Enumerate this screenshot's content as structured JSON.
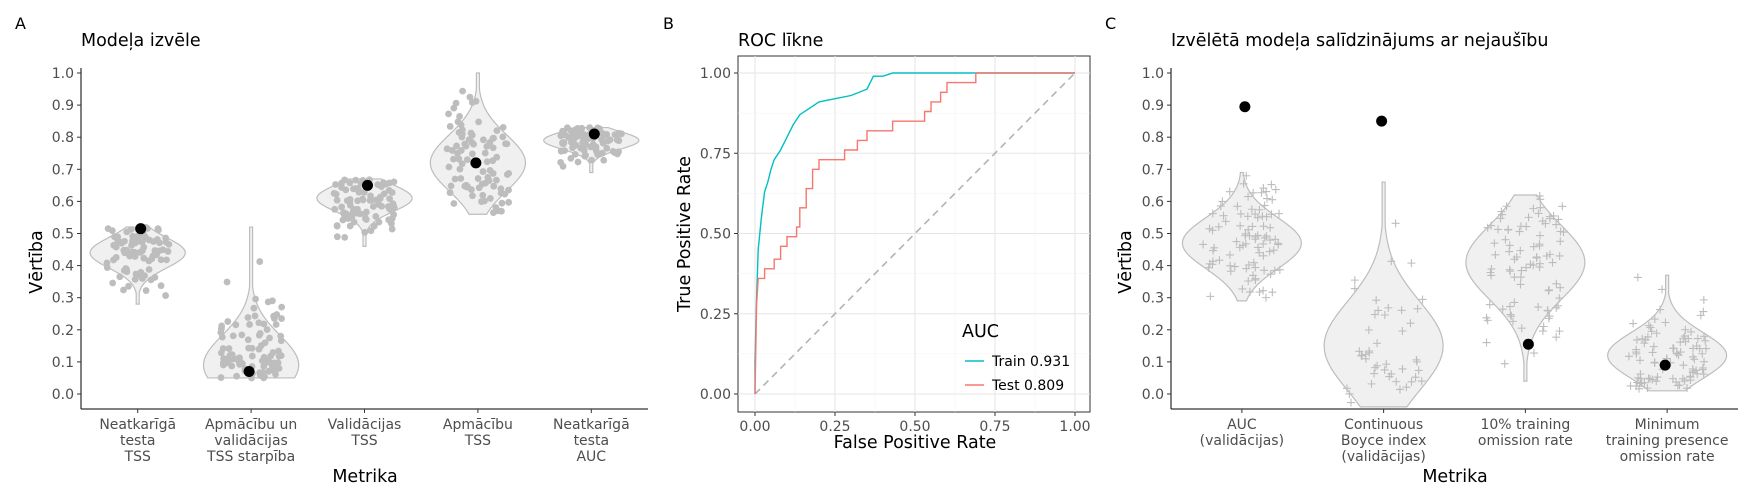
{
  "chart_data": [
    {
      "panel_letter": "A",
      "type": "violin",
      "title": "Modeļa izvēle",
      "xlabel": "Metrika",
      "ylabel": "Vērtība",
      "ylim": [
        0,
        1
      ],
      "yticks": [
        "0.0",
        "0.1",
        "0.2",
        "0.3",
        "0.4",
        "0.5",
        "0.6",
        "0.7",
        "0.8",
        "0.9",
        "1.0"
      ],
      "grid": false,
      "categories": [
        {
          "label_lines": [
            "Neatkarīgā",
            "testa",
            "TSS"
          ],
          "min": 0.28,
          "max": 0.52,
          "center": 0.44,
          "n_points": 90,
          "selected": 0.515
        },
        {
          "label_lines": [
            "Apmācību un",
            "validācijas",
            "TSS starpība"
          ],
          "min": 0.05,
          "max": 0.52,
          "center": 0.09,
          "n_points": 90,
          "selected": 0.07
        },
        {
          "label_lines": [
            "Validācijas",
            "TSS"
          ],
          "min": 0.46,
          "max": 0.67,
          "center": 0.61,
          "n_points": 90,
          "selected": 0.65
        },
        {
          "label_lines": [
            "Apmācību",
            "TSS"
          ],
          "min": 0.56,
          "max": 1.0,
          "center": 0.72,
          "n_points": 90,
          "selected": 0.72
        },
        {
          "label_lines": [
            "Neatkarīgā",
            "testa",
            "AUC"
          ],
          "min": 0.69,
          "max": 0.83,
          "center": 0.79,
          "n_points": 90,
          "selected": 0.81
        }
      ]
    },
    {
      "panel_letter": "B",
      "type": "line",
      "title": "ROC līkne",
      "xlabel": "False Positive Rate",
      "ylabel": "True Positive Rate",
      "xlim": [
        0,
        1
      ],
      "ylim": [
        0,
        1
      ],
      "xticks": [
        "0.00",
        "0.25",
        "0.50",
        "0.75",
        "1.00"
      ],
      "yticks": [
        "0.00",
        "0.25",
        "0.50",
        "0.75",
        "1.00"
      ],
      "grid": true,
      "legend_title": "AUC",
      "legend_position": "bottom-right",
      "series": [
        {
          "name": "Train 0.931",
          "color": "#00BFC4",
          "points": [
            [
              0,
              0
            ],
            [
              0,
              0.1
            ],
            [
              0.005,
              0.3
            ],
            [
              0.01,
              0.45
            ],
            [
              0.02,
              0.55
            ],
            [
              0.03,
              0.63
            ],
            [
              0.04,
              0.66
            ],
            [
              0.05,
              0.7
            ],
            [
              0.06,
              0.73
            ],
            [
              0.08,
              0.76
            ],
            [
              0.1,
              0.8
            ],
            [
              0.12,
              0.84
            ],
            [
              0.14,
              0.87
            ],
            [
              0.17,
              0.89
            ],
            [
              0.2,
              0.91
            ],
            [
              0.25,
              0.92
            ],
            [
              0.3,
              0.93
            ],
            [
              0.35,
              0.95
            ],
            [
              0.37,
              0.99
            ],
            [
              0.4,
              0.99
            ],
            [
              0.43,
              1.0
            ],
            [
              1.0,
              1.0
            ]
          ]
        },
        {
          "name": "Test 0.809",
          "color": "#F8766D",
          "points": [
            [
              0,
              0
            ],
            [
              0.005,
              0.28
            ],
            [
              0.01,
              0.36
            ],
            [
              0.03,
              0.36
            ],
            [
              0.03,
              0.39
            ],
            [
              0.06,
              0.39
            ],
            [
              0.06,
              0.42
            ],
            [
              0.08,
              0.42
            ],
            [
              0.08,
              0.46
            ],
            [
              0.1,
              0.46
            ],
            [
              0.1,
              0.49
            ],
            [
              0.13,
              0.49
            ],
            [
              0.13,
              0.52
            ],
            [
              0.14,
              0.52
            ],
            [
              0.14,
              0.58
            ],
            [
              0.16,
              0.58
            ],
            [
              0.16,
              0.64
            ],
            [
              0.18,
              0.64
            ],
            [
              0.18,
              0.7
            ],
            [
              0.2,
              0.7
            ],
            [
              0.2,
              0.73
            ],
            [
              0.28,
              0.73
            ],
            [
              0.28,
              0.76
            ],
            [
              0.32,
              0.76
            ],
            [
              0.32,
              0.79
            ],
            [
              0.35,
              0.79
            ],
            [
              0.35,
              0.82
            ],
            [
              0.43,
              0.82
            ],
            [
              0.43,
              0.85
            ],
            [
              0.53,
              0.85
            ],
            [
              0.53,
              0.88
            ],
            [
              0.55,
              0.88
            ],
            [
              0.55,
              0.91
            ],
            [
              0.58,
              0.91
            ],
            [
              0.58,
              0.94
            ],
            [
              0.6,
              0.94
            ],
            [
              0.6,
              0.97
            ],
            [
              0.69,
              0.97
            ],
            [
              0.69,
              1.0
            ],
            [
              1.0,
              1.0
            ]
          ]
        }
      ],
      "reference_line": {
        "from": [
          0,
          0
        ],
        "to": [
          1,
          1
        ],
        "style": "dashed",
        "color": "#b3b3b3"
      }
    },
    {
      "panel_letter": "C",
      "type": "violin",
      "title": "Izvēlētā modeļa salīdzinājums ar nejaušību",
      "xlabel": "Metrika",
      "ylabel": "Vērtība",
      "ylim": [
        0,
        1
      ],
      "yticks": [
        "0.0",
        "0.1",
        "0.2",
        "0.3",
        "0.4",
        "0.5",
        "0.6",
        "0.7",
        "0.8",
        "0.9",
        "1.0"
      ],
      "grid": false,
      "categories": [
        {
          "label_lines": [
            "AUC",
            "(validācijas)"
          ],
          "min": 0.29,
          "max": 0.69,
          "center": 0.47,
          "n_points": 90,
          "selected": 0.895
        },
        {
          "label_lines": [
            "Continuous",
            "Boyce index",
            "(validācijas)"
          ],
          "min": -0.04,
          "max": 0.66,
          "center": 0.15,
          "n_points": 45,
          "selected": 0.85
        },
        {
          "label_lines": [
            "10% training",
            "omission rate"
          ],
          "min": 0.04,
          "max": 0.62,
          "center": 0.41,
          "n_points": 90,
          "selected": 0.155
        },
        {
          "label_lines": [
            "Minimum",
            "training presence",
            "omission rate"
          ],
          "min": 0.01,
          "max": 0.37,
          "center": 0.12,
          "n_points": 90,
          "selected": 0.09
        }
      ]
    }
  ]
}
